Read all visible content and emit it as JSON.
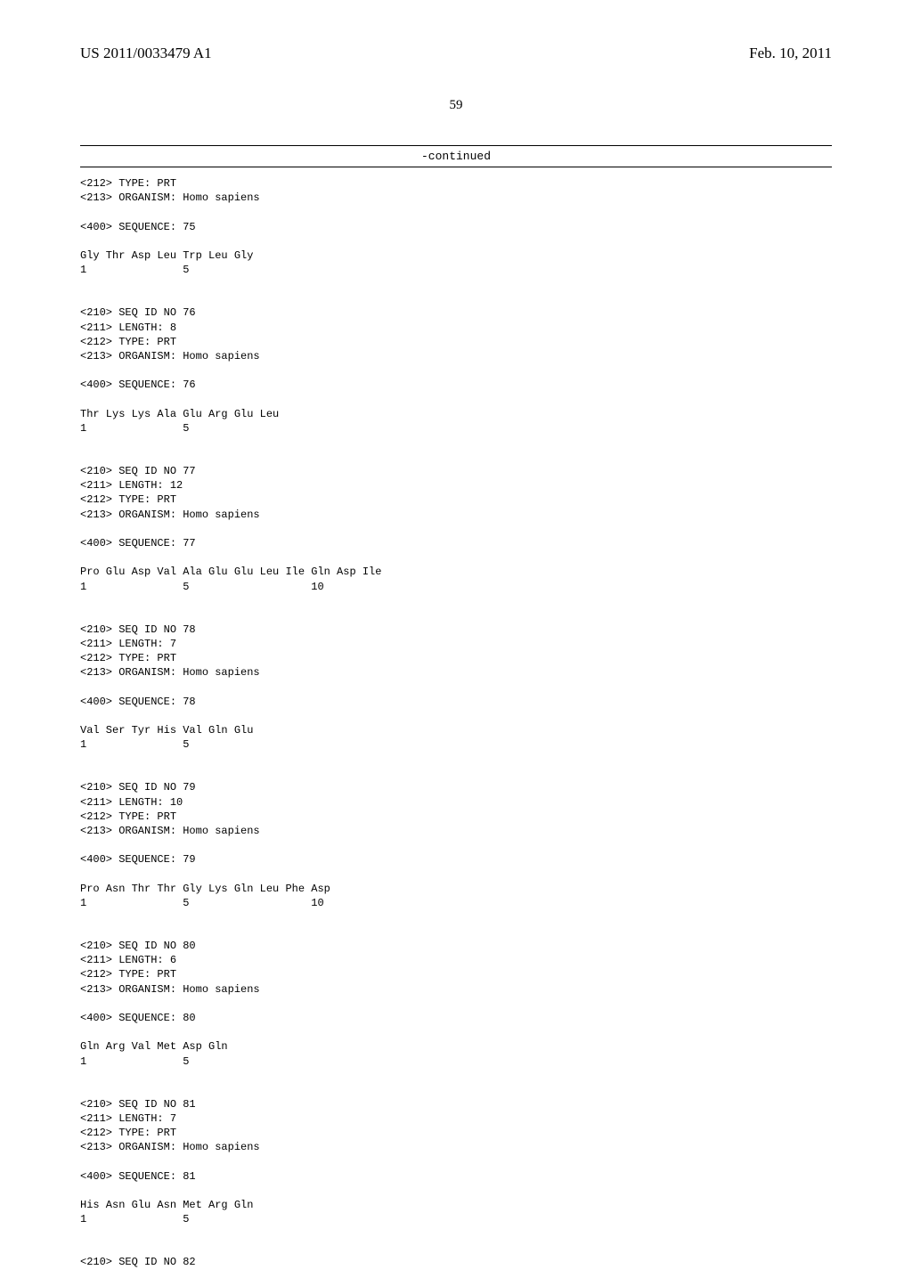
{
  "header": {
    "pub_number": "US 2011/0033479 A1",
    "pub_date": "Feb. 10, 2011"
  },
  "page_number": "59",
  "continued_label": "-continued",
  "sequences": [
    {
      "tags": [
        "<212> TYPE: PRT",
        "<213> ORGANISM: Homo sapiens",
        "",
        "<400> SEQUENCE: 75"
      ],
      "residues": "Gly Thr Asp Leu Trp Leu Gly",
      "positions": "1               5"
    },
    {
      "tags": [
        "<210> SEQ ID NO 76",
        "<211> LENGTH: 8",
        "<212> TYPE: PRT",
        "<213> ORGANISM: Homo sapiens",
        "",
        "<400> SEQUENCE: 76"
      ],
      "residues": "Thr Lys Lys Ala Glu Arg Glu Leu",
      "positions": "1               5"
    },
    {
      "tags": [
        "<210> SEQ ID NO 77",
        "<211> LENGTH: 12",
        "<212> TYPE: PRT",
        "<213> ORGANISM: Homo sapiens",
        "",
        "<400> SEQUENCE: 77"
      ],
      "residues": "Pro Glu Asp Val Ala Glu Glu Leu Ile Gln Asp Ile",
      "positions": "1               5                   10"
    },
    {
      "tags": [
        "<210> SEQ ID NO 78",
        "<211> LENGTH: 7",
        "<212> TYPE: PRT",
        "<213> ORGANISM: Homo sapiens",
        "",
        "<400> SEQUENCE: 78"
      ],
      "residues": "Val Ser Tyr His Val Gln Glu",
      "positions": "1               5"
    },
    {
      "tags": [
        "<210> SEQ ID NO 79",
        "<211> LENGTH: 10",
        "<212> TYPE: PRT",
        "<213> ORGANISM: Homo sapiens",
        "",
        "<400> SEQUENCE: 79"
      ],
      "residues": "Pro Asn Thr Thr Gly Lys Gln Leu Phe Asp",
      "positions": "1               5                   10"
    },
    {
      "tags": [
        "<210> SEQ ID NO 80",
        "<211> LENGTH: 6",
        "<212> TYPE: PRT",
        "<213> ORGANISM: Homo sapiens",
        "",
        "<400> SEQUENCE: 80"
      ],
      "residues": "Gln Arg Val Met Asp Gln",
      "positions": "1               5"
    },
    {
      "tags": [
        "<210> SEQ ID NO 81",
        "<211> LENGTH: 7",
        "<212> TYPE: PRT",
        "<213> ORGANISM: Homo sapiens",
        "",
        "<400> SEQUENCE: 81"
      ],
      "residues": "His Asn Glu Asn Met Arg Gln",
      "positions": "1               5"
    },
    {
      "tags": [
        "<210> SEQ ID NO 82"
      ],
      "residues": "",
      "positions": ""
    }
  ]
}
